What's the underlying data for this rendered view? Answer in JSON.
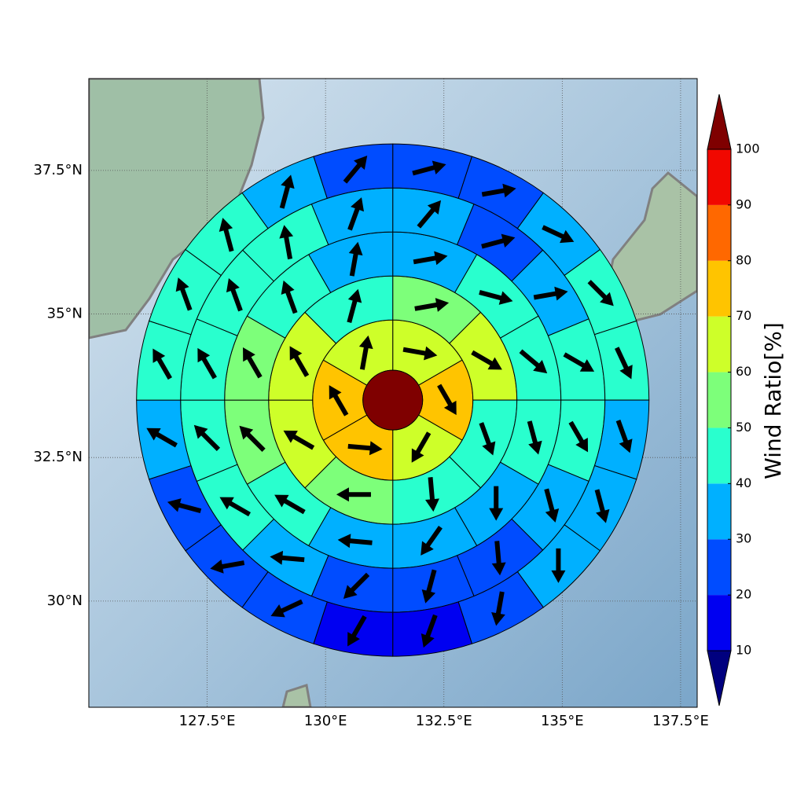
{
  "chart_data": {
    "type": "polar-sectors",
    "xlim": [
      125.0,
      137.85
    ],
    "ylim": [
      28.15,
      39.1
    ],
    "xticks": [
      {
        "value": 127.5,
        "label": "127.5°E"
      },
      {
        "value": 130,
        "label": "130°E"
      },
      {
        "value": 132.5,
        "label": "132.5°E"
      },
      {
        "value": 135,
        "label": "135°E"
      },
      {
        "value": 137.5,
        "label": "137.5°E"
      }
    ],
    "yticks": [
      {
        "value": 30,
        "label": "30°N"
      },
      {
        "value": 32.5,
        "label": "32.5°N"
      },
      {
        "value": 35,
        "label": "35°N"
      },
      {
        "value": 37.5,
        "label": "37.5°N"
      }
    ],
    "grid": true,
    "center": {
      "lon": 131.42,
      "lat": 33.5,
      "ratio": 100
    },
    "rings": [
      {
        "ratios": [
          65,
          75,
          65,
          75,
          75,
          65
        ],
        "directions": [
          100,
          150,
          210,
          95,
          330,
          10
        ]
      },
      {
        "ratios": [
          55,
          65,
          45,
          45,
          55,
          65,
          65,
          45
        ],
        "directions": [
          80,
          120,
          160,
          175,
          270,
          300,
          330,
          15
        ]
      },
      {
        "ratios": [
          35,
          45,
          45,
          45,
          35,
          35,
          35,
          45,
          55,
          55,
          45,
          35
        ],
        "directions": [
          80,
          105,
          130,
          165,
          180,
          215,
          275,
          300,
          315,
          330,
          340,
          10
        ]
      },
      {
        "ratios": [
          35,
          25,
          35,
          45,
          45,
          35,
          25,
          25,
          25,
          35,
          45,
          45,
          45,
          45,
          45,
          35
        ],
        "directions": [
          40,
          75,
          80,
          120,
          150,
          165,
          175,
          195,
          225,
          275,
          300,
          315,
          330,
          340,
          350,
          20
        ]
      },
      {
        "ratios": [
          25,
          25,
          35,
          45,
          45,
          35,
          35,
          35,
          25,
          15,
          15,
          25,
          25,
          25,
          35,
          45,
          45,
          45,
          35,
          25
        ],
        "directions": [
          75,
          80,
          115,
          135,
          155,
          160,
          165,
          180,
          190,
          200,
          210,
          245,
          260,
          285,
          300,
          330,
          340,
          345,
          15,
          40
        ]
      }
    ],
    "colorbar": {
      "label": "Wind Ratio[%]",
      "ticks": [
        10,
        20,
        30,
        40,
        50,
        60,
        70,
        80,
        90,
        100
      ],
      "colors": [
        "#00007f",
        "#0000f1",
        "#004cff",
        "#00b0ff",
        "#29ffce",
        "#7dff7a",
        "#ceff29",
        "#ffc400",
        "#ff6800",
        "#f10800",
        "#7f0000"
      ]
    }
  }
}
